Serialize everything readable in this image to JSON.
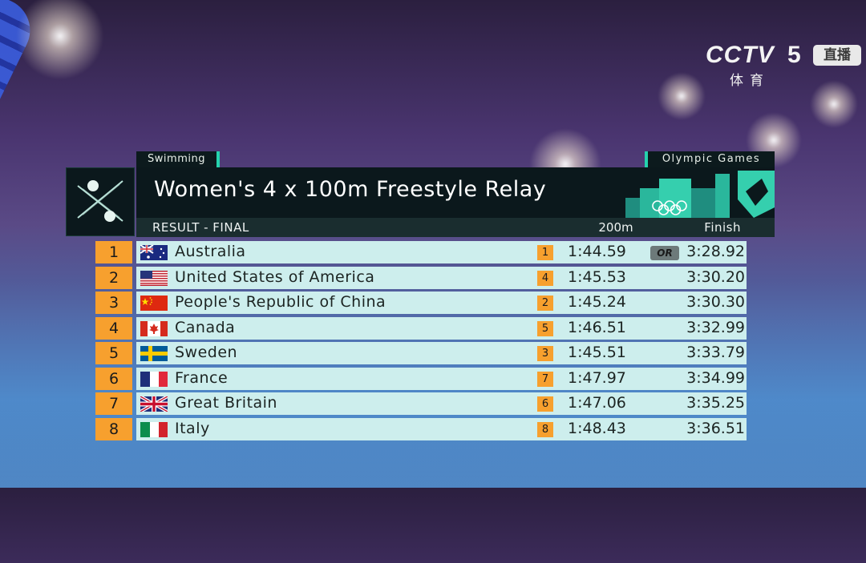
{
  "broadcaster": {
    "logo_text": "CCTV",
    "channel_number": "5",
    "live_badge": "直播",
    "subtitle": "体育"
  },
  "header": {
    "sport": "Swimming",
    "games": "Olympic Games",
    "event_title": "Women's 4 x 100m Freestyle Relay",
    "result_label": "RESULT - FINAL",
    "split_column_label": "200m",
    "finish_column_label": "Finish"
  },
  "colors": {
    "rank_orange": "#f7a02e",
    "row_band": "#cdeeed",
    "header_dark": "#0b181c",
    "accent_teal": "#25d2ad"
  },
  "results": [
    {
      "rank": "1",
      "country": "Australia",
      "flag": "australia-flag",
      "split_rank": "1",
      "split_time": "1:44.59",
      "record": "OR",
      "finish": "3:28.92"
    },
    {
      "rank": "2",
      "country": "United States of America",
      "flag": "usa-flag",
      "split_rank": "4",
      "split_time": "1:45.53",
      "record": "",
      "finish": "3:30.20"
    },
    {
      "rank": "3",
      "country": "People's Republic of China",
      "flag": "china-flag",
      "split_rank": "2",
      "split_time": "1:45.24",
      "record": "",
      "finish": "3:30.30"
    },
    {
      "rank": "4",
      "country": "Canada",
      "flag": "canada-flag",
      "split_rank": "5",
      "split_time": "1:46.51",
      "record": "",
      "finish": "3:32.99"
    },
    {
      "rank": "5",
      "country": "Sweden",
      "flag": "sweden-flag",
      "split_rank": "3",
      "split_time": "1:45.51",
      "record": "",
      "finish": "3:33.79"
    },
    {
      "rank": "6",
      "country": "France",
      "flag": "france-flag",
      "split_rank": "7",
      "split_time": "1:47.97",
      "record": "",
      "finish": "3:34.99"
    },
    {
      "rank": "7",
      "country": "Great Britain",
      "flag": "great-britain-flag",
      "split_rank": "6",
      "split_time": "1:47.06",
      "record": "",
      "finish": "3:35.25"
    },
    {
      "rank": "8",
      "country": "Italy",
      "flag": "italy-flag",
      "split_rank": "8",
      "split_time": "1:48.43",
      "record": "",
      "finish": "3:36.51"
    }
  ]
}
